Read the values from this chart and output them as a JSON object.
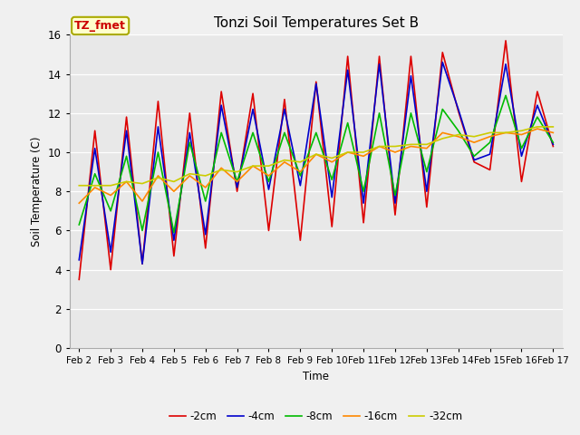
{
  "title": "Tonzi Soil Temperatures Set B",
  "xlabel": "Time",
  "ylabel": "Soil Temperature (C)",
  "legend_label": "TZ_fmet",
  "ylim": [
    0,
    16
  ],
  "yticks": [
    0,
    2,
    4,
    6,
    8,
    10,
    12,
    14,
    16
  ],
  "fig_bg": "#f0f0f0",
  "plot_bg": "#e8e8e8",
  "line_colors": {
    "-2cm": "#dd0000",
    "-4cm": "#0000cc",
    "-8cm": "#00bb00",
    "-16cm": "#ff8800",
    "-32cm": "#cccc00"
  },
  "x_labels": [
    "Feb 2",
    "Feb 3",
    "Feb 4",
    "Feb 5",
    "Feb 6",
    "Feb 7",
    "Feb 8",
    "Feb 9",
    "Feb 10",
    "Feb 11",
    "Feb 12",
    "Feb 13",
    "Feb 14",
    "Feb 15",
    "Feb 16",
    "Feb 17"
  ],
  "x_values": [
    0,
    1,
    2,
    3,
    4,
    5,
    6,
    7,
    8,
    9,
    10,
    11,
    12,
    13,
    14,
    15
  ],
  "series": {
    "-2cm": [
      3.5,
      11.1,
      4.0,
      11.8,
      4.3,
      12.6,
      4.7,
      12.0,
      5.1,
      13.1,
      8.0,
      13.0,
      6.0,
      12.7,
      5.5,
      13.6,
      6.2,
      14.9,
      6.4,
      14.9,
      6.8,
      14.9,
      7.2,
      15.1,
      12.1,
      9.5,
      9.1,
      15.7,
      8.5,
      13.1,
      10.3
    ],
    "-4cm": [
      4.5,
      10.2,
      4.9,
      11.1,
      4.3,
      11.3,
      5.5,
      11.0,
      5.8,
      12.4,
      8.2,
      12.2,
      8.1,
      12.2,
      8.3,
      13.5,
      7.7,
      14.2,
      7.4,
      14.5,
      7.4,
      13.9,
      8.0,
      14.6,
      12.2,
      9.6,
      9.9,
      14.5,
      9.8,
      12.4,
      10.4
    ],
    "-8cm": [
      6.3,
      8.9,
      7.0,
      9.8,
      6.0,
      10.0,
      5.9,
      10.5,
      7.5,
      11.0,
      8.5,
      11.0,
      8.5,
      11.0,
      8.8,
      11.0,
      8.6,
      11.5,
      8.0,
      12.0,
      7.8,
      12.0,
      9.0,
      12.2,
      11.1,
      9.8,
      10.5,
      12.9,
      10.2,
      11.8,
      10.5
    ],
    "-16cm": [
      7.4,
      8.2,
      7.8,
      8.5,
      7.5,
      8.8,
      8.0,
      8.8,
      8.2,
      9.2,
      8.5,
      9.3,
      8.8,
      9.5,
      9.0,
      9.9,
      9.5,
      10.0,
      9.8,
      10.3,
      10.0,
      10.3,
      10.2,
      11.0,
      10.8,
      10.5,
      10.8,
      11.0,
      10.9,
      11.2,
      11.0
    ],
    "-32cm": [
      8.3,
      8.3,
      8.3,
      8.5,
      8.4,
      8.7,
      8.5,
      8.9,
      8.8,
      9.1,
      9.0,
      9.3,
      9.3,
      9.6,
      9.5,
      9.9,
      9.7,
      10.0,
      10.0,
      10.3,
      10.3,
      10.4,
      10.4,
      10.7,
      10.9,
      10.8,
      11.0,
      11.0,
      11.1,
      11.3,
      11.3
    ]
  }
}
